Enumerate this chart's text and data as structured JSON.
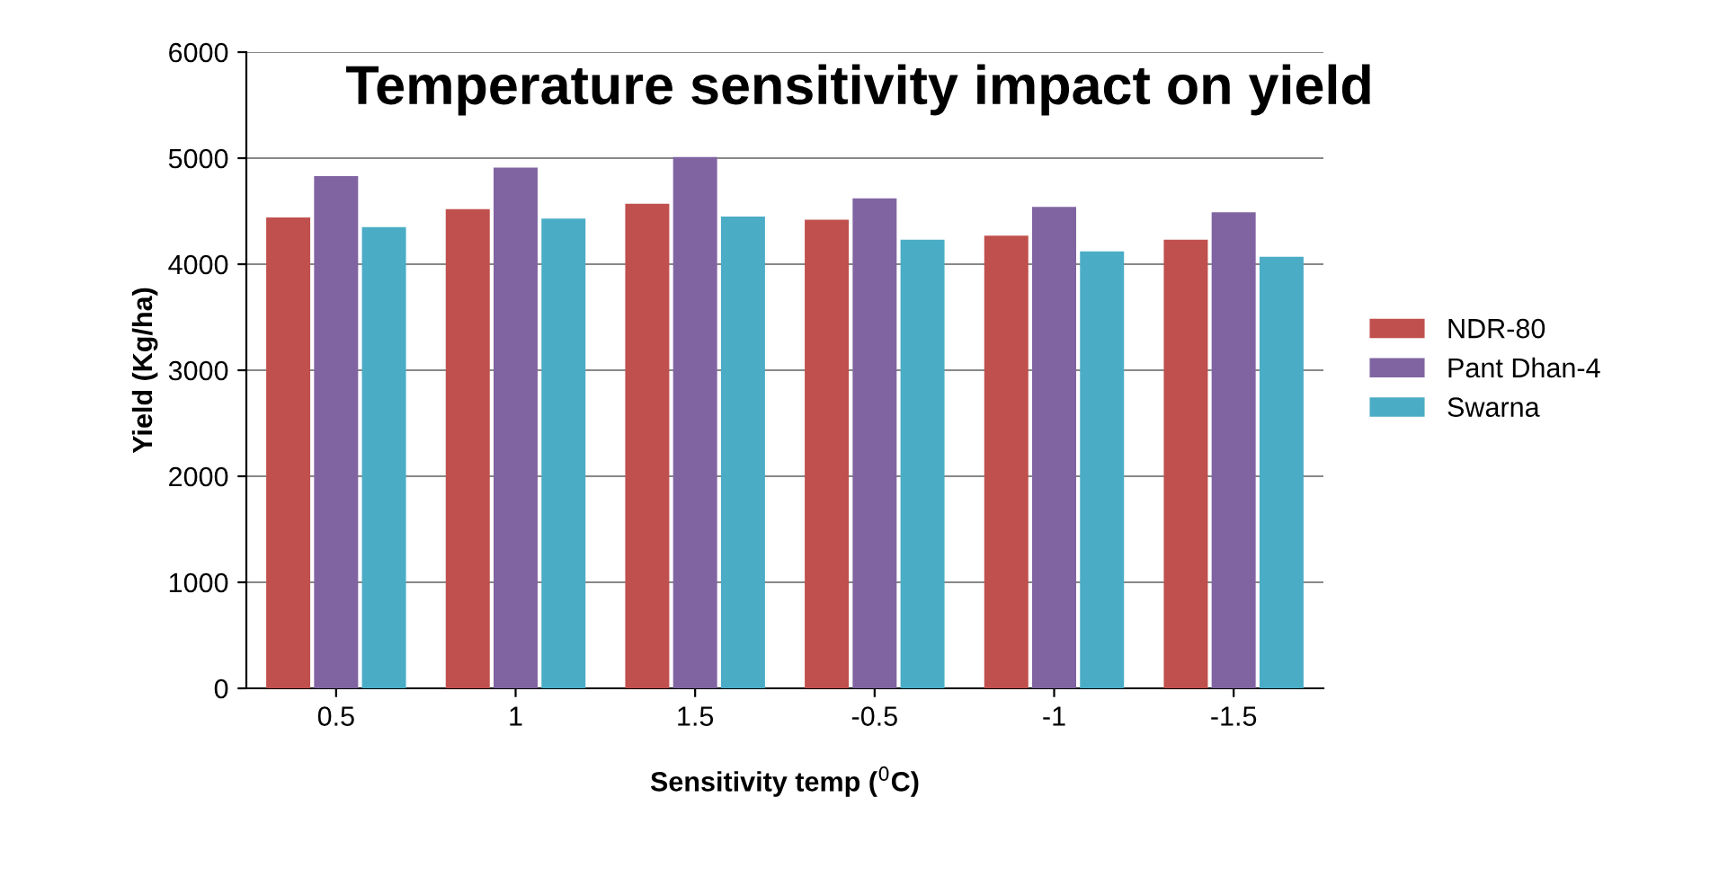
{
  "chart_data": {
    "type": "bar",
    "title": "Temperature sensitivity impact on yield",
    "xlabel": "Sensitivity temp ($^{0}$C)",
    "ylabel": "Yield (Kg/ha)",
    "categories": [
      "0.5",
      "1",
      "1.5",
      "-0.5",
      "-1",
      "-1.5"
    ],
    "series": [
      {
        "name": "NDR-80",
        "color": "#c0504d",
        "values": [
          4440,
          4520,
          4570,
          4420,
          4270,
          4230
        ]
      },
      {
        "name": "Pant Dhan-4",
        "color": "#8064a2",
        "values": [
          4830,
          4910,
          5010,
          4620,
          4540,
          4490
        ]
      },
      {
        "name": "Swarna",
        "color": "#4bacc6",
        "values": [
          4350,
          4430,
          4450,
          4230,
          4120,
          4070
        ]
      }
    ],
    "ylim": [
      0,
      6000
    ],
    "yticks": [
      0,
      1000,
      2000,
      3000,
      4000,
      5000,
      6000
    ],
    "grid": "y",
    "legend": "right"
  }
}
